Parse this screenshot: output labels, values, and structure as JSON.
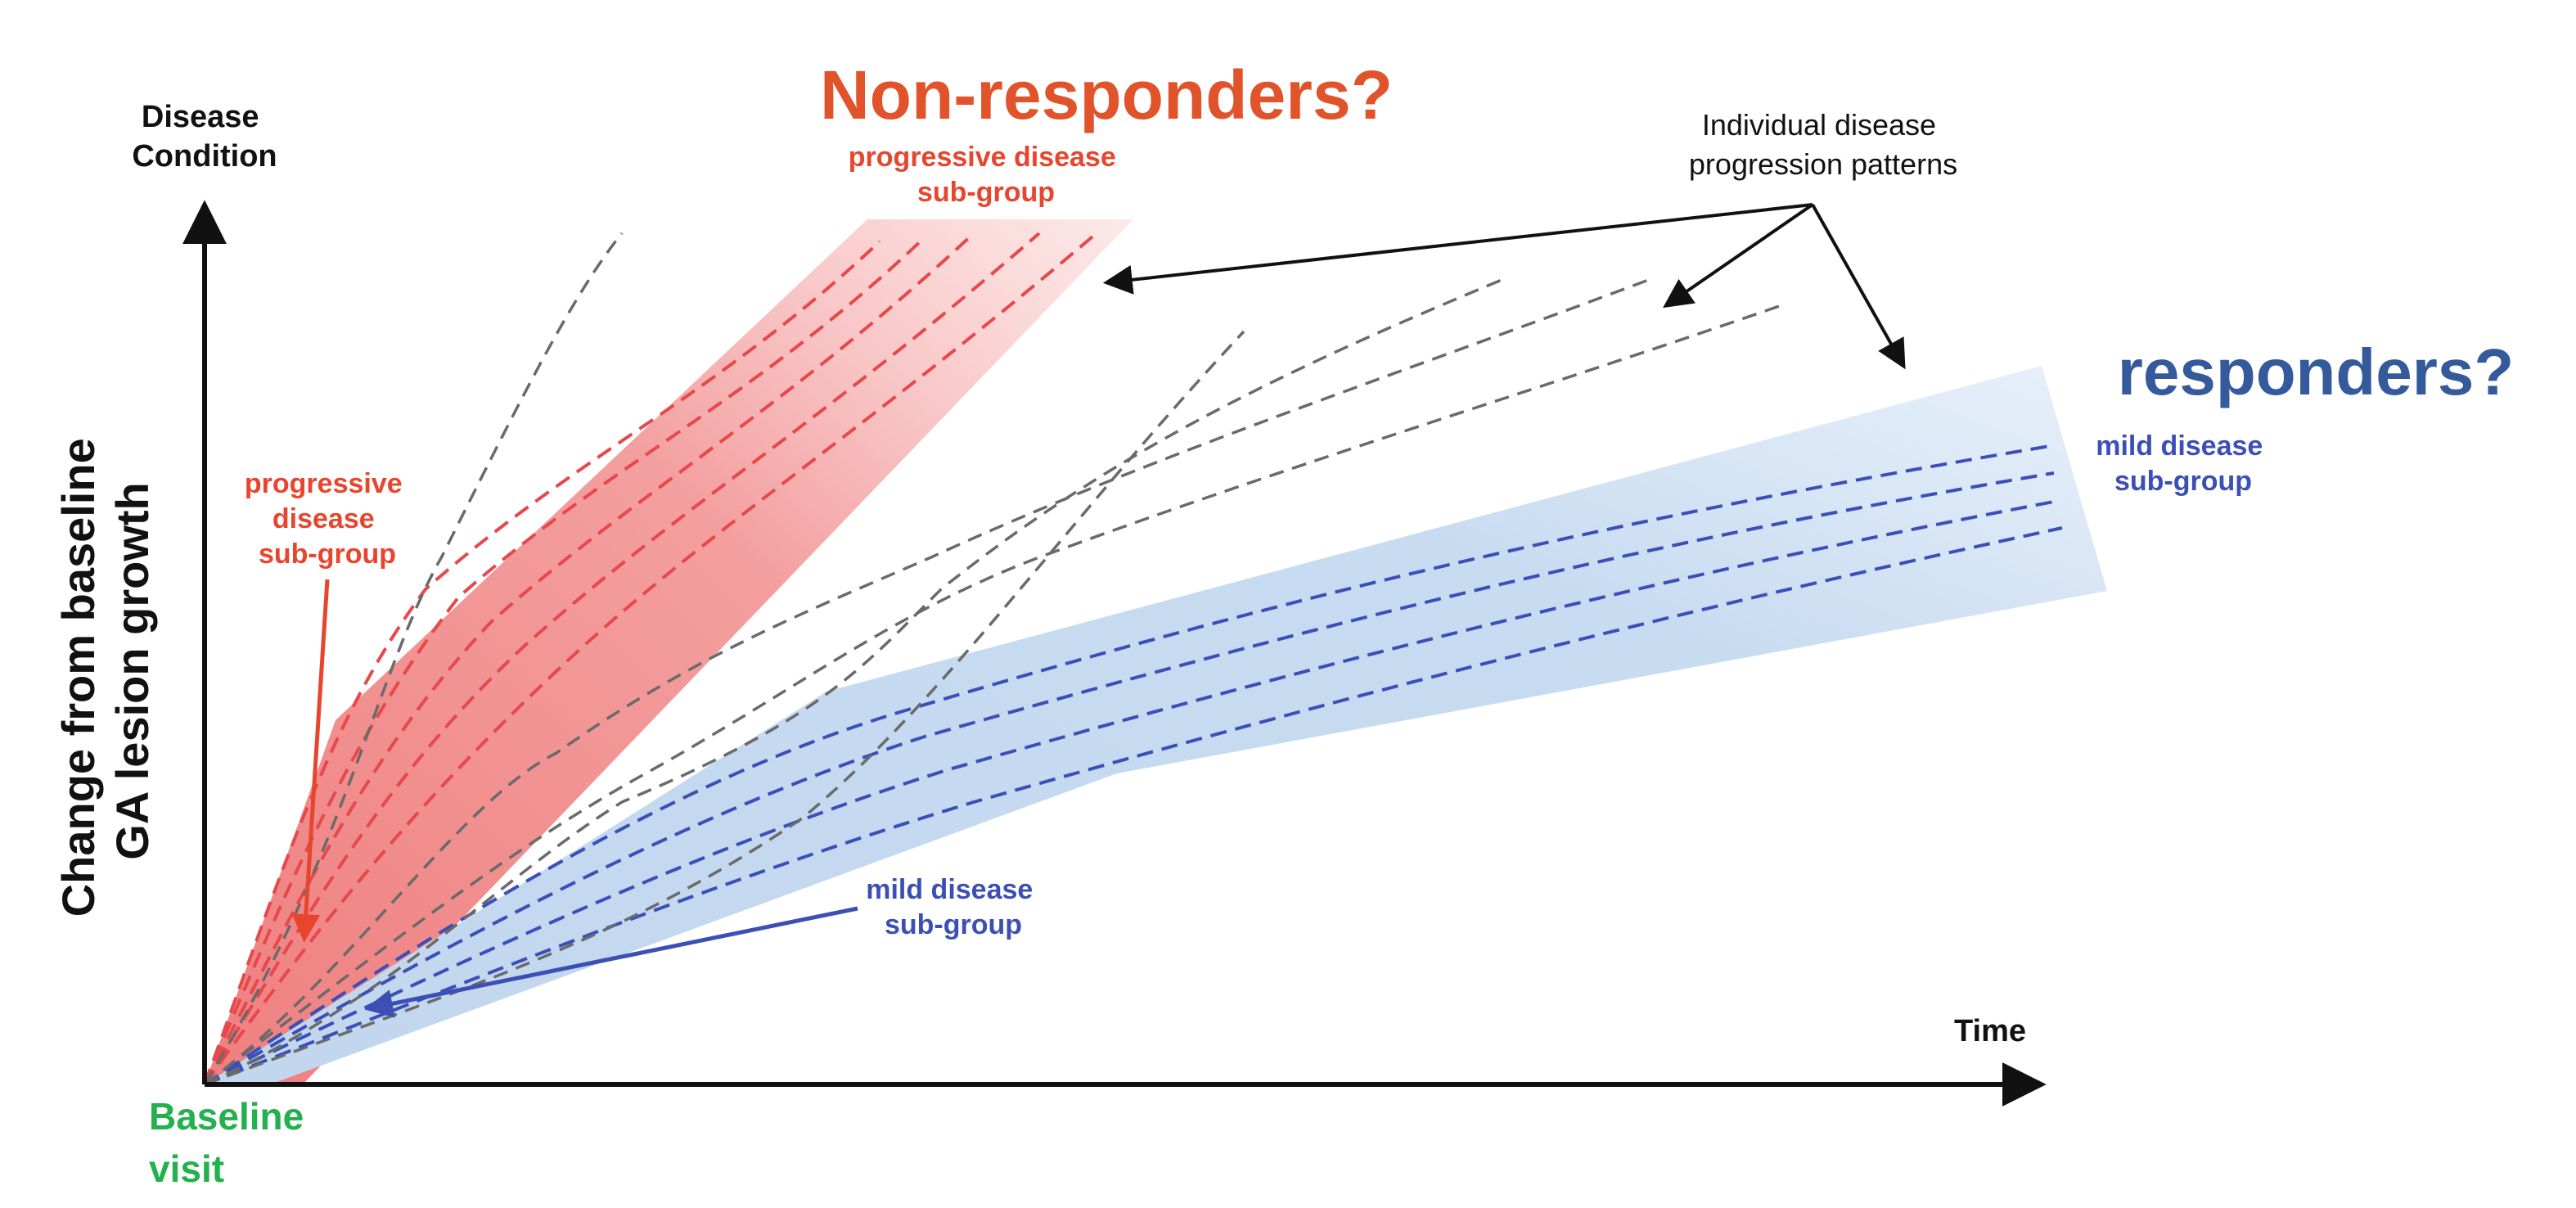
{
  "labels": {
    "y_axis_top_line1": "Disease",
    "y_axis_top_line2": "Condition",
    "y_axis_main_line1": "Change from baseline",
    "y_axis_main_line2": "GA lesion growth",
    "x_axis": "Time",
    "baseline_line1": "Baseline",
    "baseline_line2": "visit",
    "non_responders_title": "Non-responders?",
    "responders_title": "responders?",
    "progressive_top_line1": "progressive disease",
    "progressive_top_line2": "sub-group",
    "progressive_left_line1": "progressive",
    "progressive_left_line2": "disease",
    "progressive_left_line3": "sub-group",
    "mild_bottom_line1": "mild disease",
    "mild_bottom_line2": "sub-group",
    "mild_right_line1": "mild disease",
    "mild_right_line2": "sub-group",
    "individual_line1": "Individual disease",
    "individual_line2": "progression patterns"
  },
  "colors": {
    "red_title": "#e0532b",
    "red_text": "#e8452e",
    "red_band": "#f08b8b",
    "red_line": "#e6484c",
    "blue_title": "#345a9c",
    "blue_text": "#3c4fb5",
    "blue_band": "#b9d2ee",
    "blue_line": "#3a4fb8",
    "gray_line": "#666666",
    "green_text": "#22b14c",
    "axis": "#111111"
  }
}
